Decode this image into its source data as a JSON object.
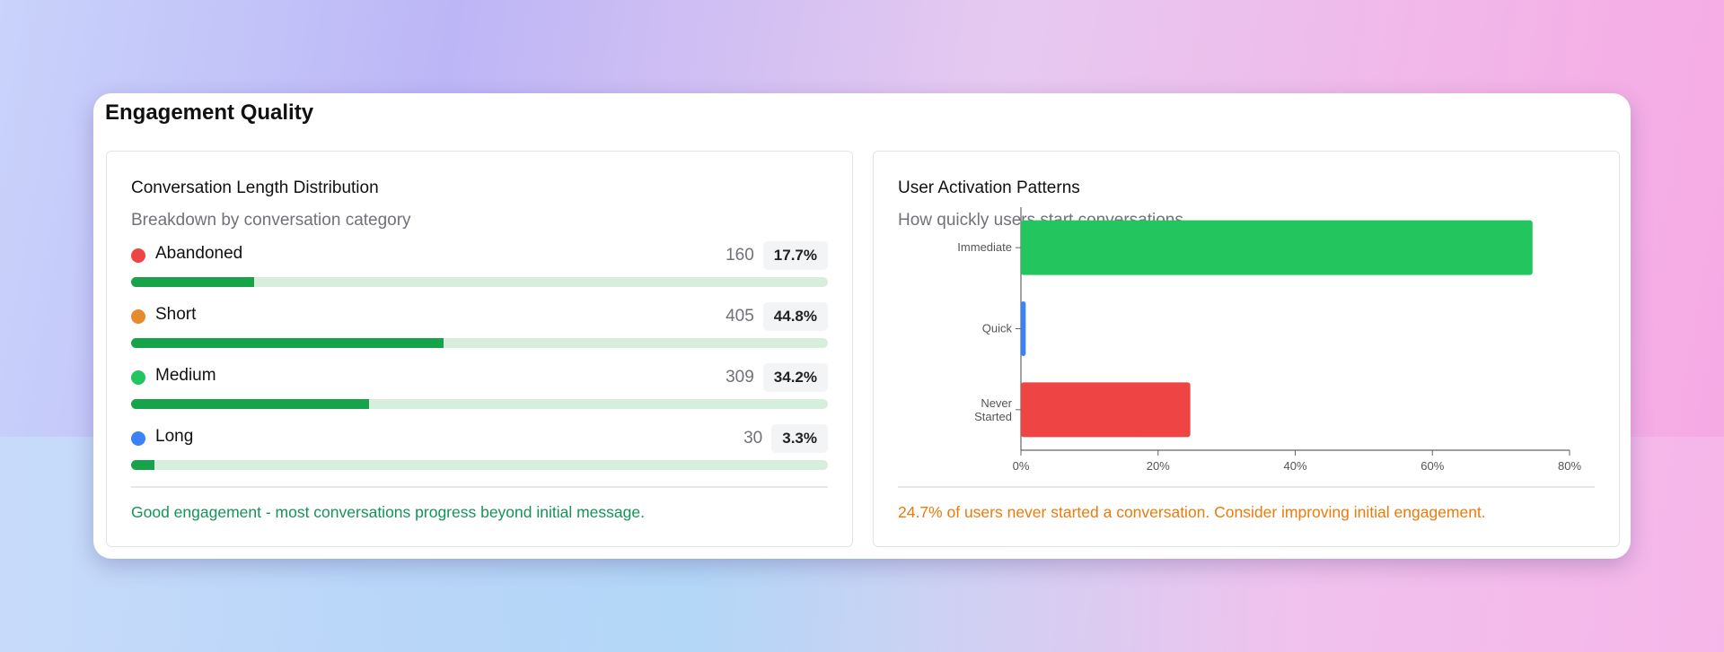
{
  "title": "Engagement Quality",
  "left_panel": {
    "title": "Conversation Length Distribution",
    "subtitle": "Breakdown by conversation category",
    "rows": [
      {
        "label": "Abandoned",
        "count": "160",
        "percent": "17.7%",
        "value": 17.7,
        "dot_color": "#ef4444"
      },
      {
        "label": "Short",
        "count": "405",
        "percent": "44.8%",
        "value": 44.8,
        "dot_color": "#e68a2e"
      },
      {
        "label": "Medium",
        "count": "309",
        "percent": "34.2%",
        "value": 34.2,
        "dot_color": "#22c55e"
      },
      {
        "label": "Long",
        "count": "30",
        "percent": "3.3%",
        "value": 3.3,
        "dot_color": "#3b82f6"
      }
    ],
    "footer": "Good engagement - most conversations progress beyond initial message.",
    "footer_color": "#16935a"
  },
  "right_panel": {
    "title": "User Activation Patterns",
    "subtitle": "How quickly users start conversations",
    "footer": "24.7% of users never started a conversation. Consider improving initial engagement.",
    "footer_color": "#ea7b0c"
  },
  "chart_data": {
    "type": "bar",
    "orientation": "horizontal",
    "categories": [
      "Immediate",
      "Quick",
      "Never Started"
    ],
    "values": [
      74.6,
      0.7,
      24.7
    ],
    "colors": [
      "#22c55e",
      "#3b82f6",
      "#ef4444"
    ],
    "xlim": [
      0,
      80
    ],
    "xticks": [
      0,
      20,
      40,
      60,
      80
    ],
    "xtick_labels": [
      "0%",
      "20%",
      "40%",
      "60%",
      "80%"
    ],
    "grid": false
  }
}
